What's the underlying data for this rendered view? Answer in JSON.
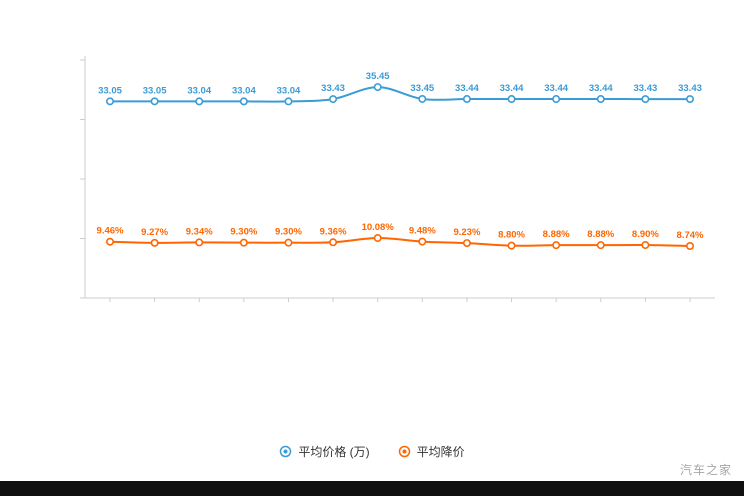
{
  "page": {
    "watermark": "汽车之家"
  },
  "chart_data": {
    "type": "line",
    "title": "",
    "xlabel": "",
    "ylabel": "",
    "ylim": [
      0,
      40
    ],
    "grid": false,
    "legend_position": "bottom",
    "x": [
      1,
      2,
      3,
      4,
      5,
      6,
      7,
      8,
      9,
      10,
      11,
      12,
      13,
      14
    ],
    "series": [
      {
        "name": "平均价格 (万)",
        "color": "#3b9bd6",
        "values": [
          33.05,
          33.05,
          33.04,
          33.04,
          33.04,
          33.43,
          35.45,
          33.45,
          33.44,
          33.44,
          33.44,
          33.44,
          33.43,
          33.43
        ],
        "labels": [
          "33.05",
          "33.05",
          "33.04",
          "33.04",
          "33.04",
          "33.43",
          "35.45",
          "33.45",
          "33.44",
          "33.44",
          "33.44",
          "33.44",
          "33.43",
          "33.43"
        ]
      },
      {
        "name": "平均降价",
        "color": "#ff6600",
        "values": [
          9.46,
          9.27,
          9.34,
          9.3,
          9.3,
          9.36,
          10.08,
          9.48,
          9.23,
          8.8,
          8.88,
          8.88,
          8.9,
          8.74
        ],
        "labels": [
          "9.46%",
          "9.27%",
          "9.34%",
          "9.30%",
          "9.30%",
          "9.36%",
          "10.08%",
          "9.48%",
          "9.23%",
          "8.80%",
          "8.88%",
          "8.88%",
          "8.90%",
          "8.74%"
        ]
      }
    ]
  }
}
